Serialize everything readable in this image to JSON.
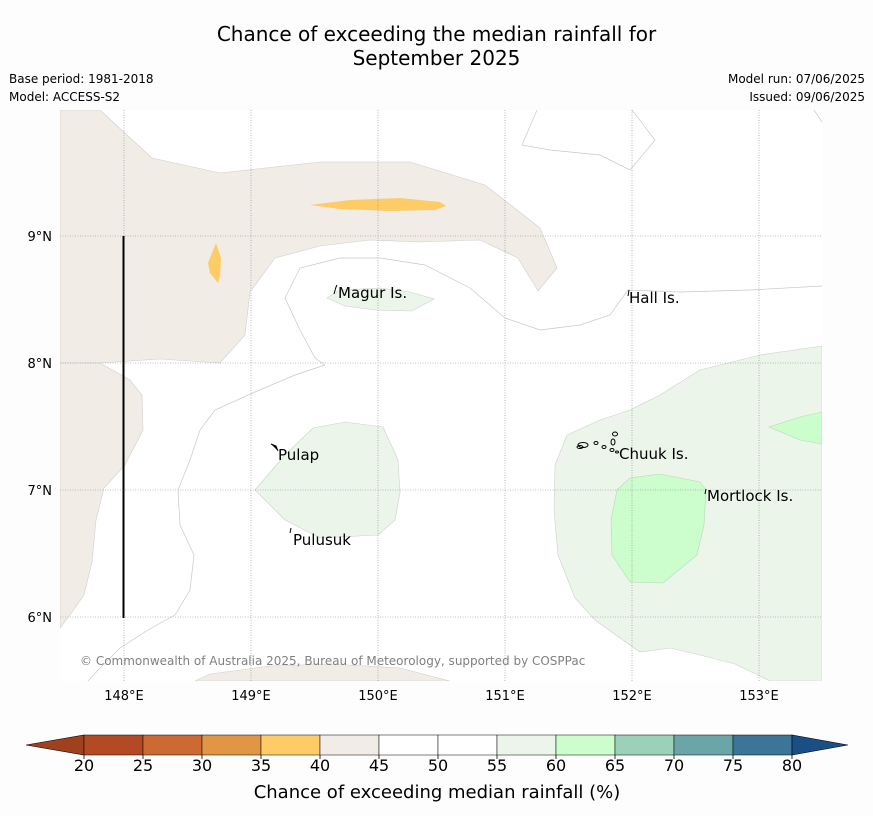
{
  "title_line1": "Chance of exceeding the median rainfall for",
  "title_line2": "September 2025",
  "base_period": "Base period: 1981-2018",
  "model": "Model: ACCESS-S2",
  "model_run": "Model run: 07/06/2025",
  "issued": "Issued: 09/06/2025",
  "axes": {
    "x_ticks": [
      "148°E",
      "149°E",
      "150°E",
      "151°E",
      "152°E",
      "153°E"
    ],
    "y_ticks": [
      "9°N",
      "8°N",
      "7°N",
      "6°N"
    ]
  },
  "places": [
    {
      "name": "Magur Is."
    },
    {
      "name": "Hall Is."
    },
    {
      "name": "Pulap"
    },
    {
      "name": "Chuuk Is."
    },
    {
      "name": "Mortlock Is."
    },
    {
      "name": "Pulusuk"
    }
  ],
  "copyright": "© Commonwealth of Australia 2025, Bureau of Meteorology, supported by COSPPac",
  "colorbar": {
    "label": "Chance of exceeding median rainfall (%)",
    "ticks": [
      "20",
      "25",
      "30",
      "35",
      "40",
      "45",
      "50",
      "55",
      "60",
      "65",
      "70",
      "75",
      "80"
    ],
    "colors": [
      "#a0401c",
      "#b34a24",
      "#cd6a33",
      "#e09645",
      "#fdcc66",
      "#f1ece6",
      "#ffffff",
      "#ffffff",
      "#ebf5ea",
      "#ccfdcc",
      "#9ad1b8",
      "#6aa6a7",
      "#3d7598",
      "#1a4f86"
    ]
  }
}
